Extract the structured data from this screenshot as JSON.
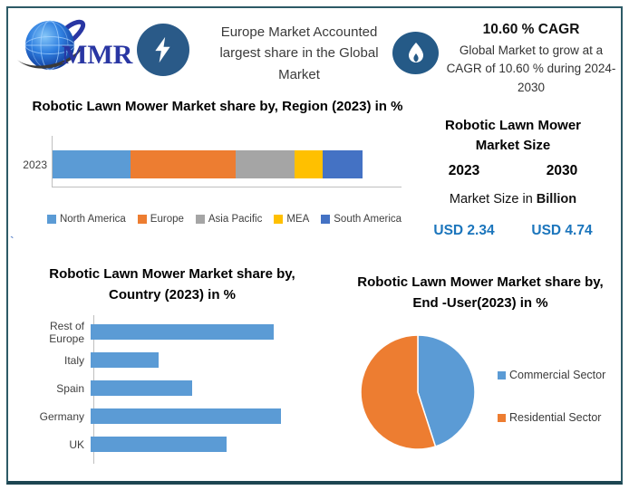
{
  "header": {
    "logo_text": "MMR",
    "headline": "Europe Market Accounted largest share in the Global Market",
    "cagr_title": "10.60 % CAGR",
    "cagr_subtitle": "Global Market to grow at a CAGR of 10.60 % during 2024-2030"
  },
  "market_size_panel": {
    "title": "Robotic Lawn Mower Market Size",
    "year_start": "2023",
    "year_end": "2030",
    "unit_label_prefix": "Market Size in ",
    "unit_label_bold": "Billion",
    "value_start": "USD 2.34",
    "value_end": "USD 4.74",
    "value_color": "#1b75bc"
  },
  "stray_mark": "`",
  "chart_data": [
    {
      "type": "bar",
      "variant": "stacked-horizontal",
      "title": "Robotic Lawn Mower Market share by, Region (2023) in %",
      "categories": [
        "2023"
      ],
      "series": [
        {
          "name": "North America",
          "color": "#5B9BD5",
          "values": [
            25
          ]
        },
        {
          "name": "Europe",
          "color": "#ED7D31",
          "values": [
            34
          ]
        },
        {
          "name": "Asia Pacific",
          "color": "#A5A5A5",
          "values": [
            19
          ]
        },
        {
          "name": "MEA",
          "color": "#FFC000",
          "values": [
            9
          ]
        },
        {
          "name": "South America",
          "color": "#4472C4",
          "values": [
            13
          ]
        }
      ],
      "xlim": [
        0,
        100
      ],
      "legend_position": "bottom",
      "grid": false
    },
    {
      "type": "bar",
      "variant": "horizontal",
      "title": "Robotic Lawn Mower Market share by, Country (2023) in %",
      "categories": [
        "Rest of Europe",
        "Italy",
        "Spain",
        "Germany",
        "UK"
      ],
      "values": [
        27,
        10,
        15,
        28,
        20
      ],
      "bar_color": "#5B9BD5",
      "xlim": [
        0,
        29
      ],
      "grid": false
    },
    {
      "type": "pie",
      "title": "Robotic Lawn Mower Market share by, End -User(2023) in %",
      "labels": [
        "Commercial Sector",
        "Residential Sector"
      ],
      "values": [
        45,
        55
      ],
      "colors": [
        "#5B9BD5",
        "#ED7D31"
      ],
      "start_angle_deg": 0,
      "direction": "clockwise",
      "legend_position": "right"
    }
  ]
}
